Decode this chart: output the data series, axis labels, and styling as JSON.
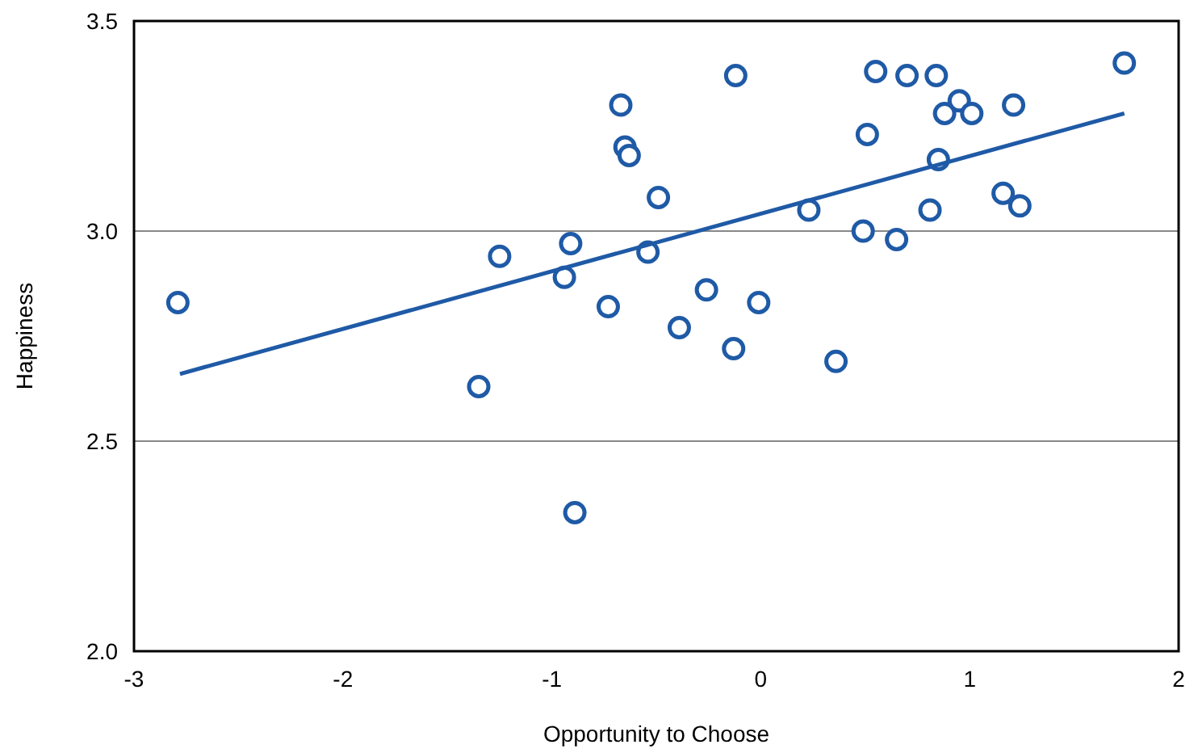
{
  "chart_data": {
    "type": "scatter",
    "xlabel": "Opportunity to Choose",
    "ylabel": "Happiness",
    "xlim": [
      -3,
      2
    ],
    "xticks": [
      -3,
      -2,
      -1,
      0,
      1,
      2
    ],
    "ylim": [
      2.0,
      3.5
    ],
    "yticks": [
      {
        "value": 2.0,
        "label": "2.0"
      },
      {
        "value": 2.5,
        "label": "2.5"
      },
      {
        "value": 3.0,
        "label": "3.0"
      },
      {
        "value": 3.5,
        "label": "3.5"
      }
    ],
    "grid": "y",
    "series": [
      {
        "marker": "circle",
        "color": "#1f5aa6",
        "x": [
          -2.79,
          -1.35,
          -1.25,
          -0.94,
          -0.91,
          -0.89,
          -0.73,
          -0.67,
          -0.65,
          -0.63,
          -0.54,
          -0.49,
          -0.39,
          -0.26,
          -0.13,
          -0.12,
          -0.01,
          0.23,
          0.36,
          0.49,
          0.51,
          0.55,
          0.65,
          0.7,
          0.81,
          0.84,
          0.85,
          0.88,
          0.95,
          1.01,
          1.16,
          1.21,
          1.24,
          1.74
        ],
        "values": [
          2.83,
          2.63,
          2.94,
          2.89,
          2.97,
          2.33,
          2.82,
          3.3,
          3.2,
          3.18,
          2.95,
          3.08,
          2.77,
          2.86,
          2.72,
          3.37,
          2.83,
          3.05,
          2.69,
          3.0,
          3.23,
          3.38,
          2.98,
          3.37,
          3.05,
          3.37,
          3.17,
          3.28,
          3.31,
          3.28,
          3.09,
          3.3,
          3.06,
          3.4
        ]
      },
      {
        "type": "line",
        "color": "#1f5aa6",
        "x": [
          -2.78,
          1.74
        ],
        "values": [
          2.66,
          3.28
        ]
      }
    ]
  }
}
